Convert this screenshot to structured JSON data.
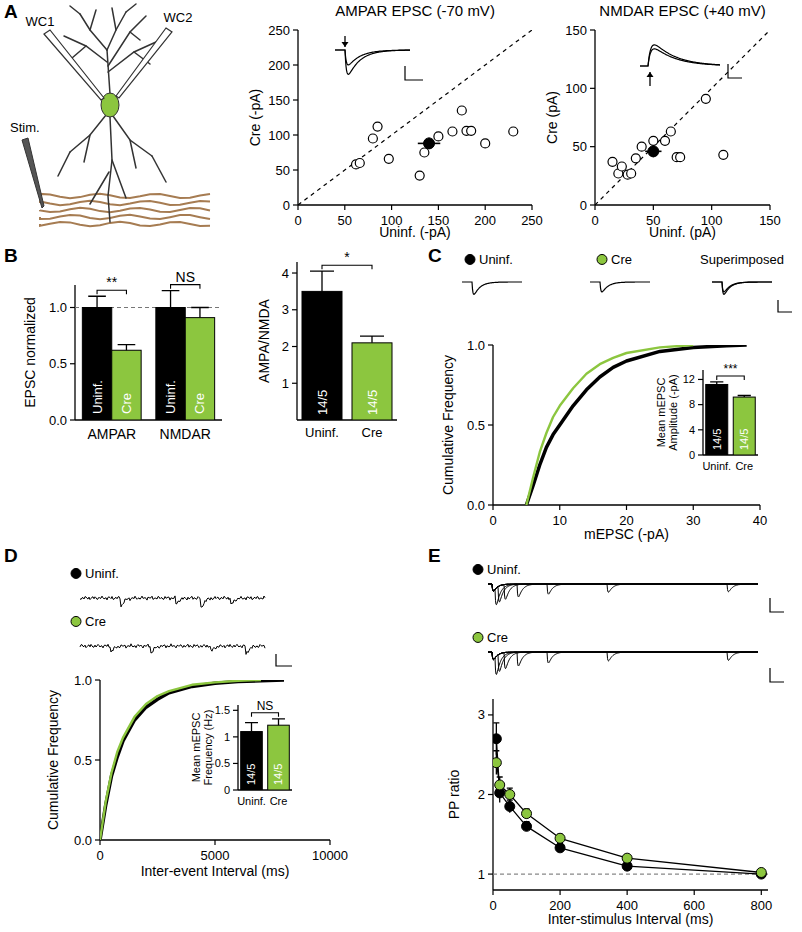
{
  "panel_labels": [
    "A",
    "B",
    "C",
    "D",
    "E"
  ],
  "diagram": {
    "labels": [
      "WC1",
      "WC2",
      "Stim."
    ]
  },
  "chart_data": [
    {
      "type": "scatter",
      "title": "AMPAR EPSC (-70 mV)",
      "x_label": "Uninf. (-pA)",
      "y_label": "Cre (-pA)",
      "xlim": [
        0,
        250
      ],
      "ylim": [
        0,
        250
      ],
      "xticks": [
        0,
        50,
        100,
        150,
        200,
        250
      ],
      "yticks": [
        0,
        50,
        100,
        150,
        200,
        250
      ],
      "x": [
        62,
        66,
        80,
        85,
        97,
        130,
        135,
        150,
        165,
        175,
        180,
        185,
        200,
        230
      ],
      "y": [
        58,
        60,
        95,
        112,
        66,
        42,
        75,
        98,
        105,
        135,
        106,
        106,
        88,
        105
      ],
      "mean": {
        "x": 140,
        "y": 88,
        "x_error": 12,
        "y_error": 8
      },
      "marker": "circle"
    },
    {
      "type": "scatter",
      "title": "NMDAR EPSC (+40 mV)",
      "x_label": "Uninf. (pA)",
      "y_label": "Cre (pA)",
      "xlim": [
        0,
        150
      ],
      "ylim": [
        0,
        150
      ],
      "xticks": [
        0,
        50,
        100,
        150
      ],
      "yticks": [
        0,
        50,
        100,
        150
      ],
      "x": [
        15,
        20,
        23,
        28,
        31,
        35,
        40,
        50,
        60,
        65,
        70,
        73,
        95,
        110
      ],
      "y": [
        37,
        27,
        33,
        26,
        27,
        40,
        50,
        55,
        55,
        63,
        41,
        41,
        91,
        43
      ],
      "mean": {
        "x": 50,
        "y": 46,
        "x_error": 7,
        "y_error": 5
      },
      "marker": "circle"
    },
    {
      "type": "bar",
      "y_label": "EPSC normalized",
      "categories": [
        "AMPAR",
        "NMDAR"
      ],
      "series": [
        {
          "name": "Uninf.",
          "color": "#000000",
          "values": [
            1.0,
            1.0
          ],
          "errors": [
            0.1,
            0.15
          ]
        },
        {
          "name": "Cre",
          "color": "#8cc63f",
          "values": [
            0.62,
            0.91
          ],
          "errors": [
            0.05,
            0.09
          ]
        }
      ],
      "ylim": [
        0,
        1.2
      ],
      "yticks": [
        {
          "value": 0,
          "label": "0.0"
        },
        {
          "value": 0.5,
          "label": "0.5"
        },
        {
          "value": 1,
          "label": "1.0"
        }
      ],
      "significance": [
        "**",
        "NS"
      ],
      "reference_line": 1
    },
    {
      "type": "bar",
      "y_label": "AMPA/NMDA",
      "categories": [
        "Uninf.",
        "Cre"
      ],
      "values": [
        3.5,
        2.1
      ],
      "errors": [
        0.55,
        0.18
      ],
      "colors": [
        "#000000",
        "#8cc63f"
      ],
      "ylim": [
        0,
        4.3
      ],
      "yticks": [
        1,
        2,
        3,
        4
      ],
      "n_labels": [
        "14/5",
        "14/5"
      ],
      "significance": "*"
    },
    {
      "type": "line",
      "x_label": "mEPSC (-pA)",
      "y_label": "Cumulative Frequency",
      "x": [
        5,
        6,
        7,
        8,
        9,
        10,
        12,
        14,
        16,
        18,
        20,
        25,
        30,
        35,
        38
      ],
      "series": [
        {
          "name": "Uninf.",
          "color": "#000000",
          "values": [
            0,
            0.12,
            0.25,
            0.36,
            0.44,
            0.5,
            0.62,
            0.72,
            0.8,
            0.86,
            0.9,
            0.96,
            0.985,
            0.995,
            1.0
          ]
        },
        {
          "name": "Cre",
          "color": "#8cc63f",
          "values": [
            0,
            0.17,
            0.33,
            0.45,
            0.55,
            0.62,
            0.73,
            0.82,
            0.88,
            0.92,
            0.95,
            0.985,
            1.0,
            null,
            null
          ]
        }
      ],
      "xlim": [
        0,
        40
      ],
      "xticks": [
        0,
        10,
        20,
        30,
        40
      ],
      "ylim": [
        0,
        1
      ],
      "yticks": [
        {
          "value": 0,
          "label": "0.0"
        },
        {
          "value": 0.5,
          "label": "0.5"
        },
        {
          "value": 1,
          "label": "1.0"
        }
      ],
      "annotations": [
        "Superimposed"
      ]
    },
    {
      "type": "bar",
      "y_label": [
        "Mean mEPSC",
        "Amplitude (-pA)"
      ],
      "categories": [
        "Uninf.",
        "Cre"
      ],
      "values": [
        11.2,
        9.2
      ],
      "errors": [
        0.4,
        0.25
      ],
      "colors": [
        "#000000",
        "#8cc63f"
      ],
      "ylim": [
        0,
        13.5
      ],
      "yticks": [
        0,
        4,
        8,
        12
      ],
      "n_labels": [
        "14/5",
        "14/5"
      ],
      "significance": "***"
    },
    {
      "type": "line",
      "x_label": "Inter-event Interval (ms)",
      "y_label": "Cumulative Frequency",
      "x": [
        0,
        250,
        500,
        750,
        1000,
        1500,
        2000,
        2500,
        3000,
        4000,
        5000,
        6000,
        7000,
        8000
      ],
      "series": [
        {
          "name": "Uninf.",
          "color": "#000000",
          "values": [
            0,
            0.22,
            0.4,
            0.52,
            0.62,
            0.75,
            0.83,
            0.88,
            0.92,
            0.96,
            0.98,
            0.99,
            0.995,
            1.0
          ]
        },
        {
          "name": "Cre",
          "color": "#8cc63f",
          "values": [
            0,
            0.24,
            0.42,
            0.55,
            0.64,
            0.77,
            0.85,
            0.9,
            0.93,
            0.97,
            0.985,
            0.995,
            1.0,
            null
          ]
        }
      ],
      "xlim": [
        0,
        10000
      ],
      "xticks": [
        0,
        5000,
        10000
      ],
      "ylim": [
        0,
        1
      ],
      "yticks": [
        {
          "value": 0,
          "label": "0.0"
        },
        {
          "value": 0.5,
          "label": "0.5"
        },
        {
          "value": 1,
          "label": "1.0"
        }
      ]
    },
    {
      "type": "bar",
      "y_label": [
        "Mean mEPSC",
        "Frequency (Hz)"
      ],
      "categories": [
        "Uninf.",
        "Cre"
      ],
      "values": [
        1.1,
        1.22
      ],
      "errors": [
        0.17,
        0.12
      ],
      "colors": [
        "#000000",
        "#8cc63f"
      ],
      "ylim": [
        0,
        1.6
      ],
      "yticks": [
        0,
        0.5,
        1,
        1.5
      ],
      "n_labels": [
        "14/5",
        "14/5"
      ],
      "significance": "NS"
    },
    {
      "type": "line",
      "marker": "circle",
      "x_label": "Inter-stimulus Interval (ms)",
      "y_label": "PP ratio",
      "x": [
        10,
        20,
        50,
        100,
        200,
        400,
        800
      ],
      "series": [
        {
          "name": "Uninf.",
          "color": "#000000",
          "values": [
            2.7,
            2.02,
            1.85,
            1.6,
            1.33,
            1.1,
            1.0
          ],
          "errors": [
            0.2,
            0.12,
            0.08,
            0.06,
            0.05,
            0.04,
            0.03
          ]
        },
        {
          "name": "Cre",
          "color": "#8cc63f",
          "values": [
            2.4,
            2.12,
            2.0,
            1.76,
            1.45,
            1.2,
            1.02
          ],
          "errors": [
            0.15,
            0.1,
            0.08,
            0.06,
            0.05,
            0.04,
            0.03
          ]
        }
      ],
      "xlim": [
        0,
        820
      ],
      "xticks": [
        0,
        200,
        400,
        600,
        800
      ],
      "ylim": [
        0.8,
        3.2
      ],
      "yticks": [
        1,
        2,
        3
      ],
      "reference_line": 1
    }
  ]
}
